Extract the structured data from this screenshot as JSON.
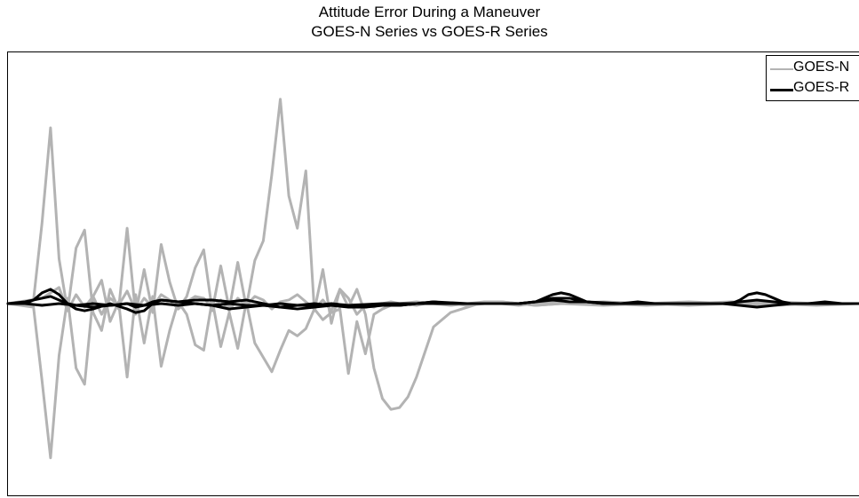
{
  "chart_data": {
    "type": "line",
    "title": "Attitude Error During a Maneuver",
    "subtitle": "GOES-N Series vs GOES-R Series",
    "xlabel": "",
    "ylabel": "",
    "xlim": [
      0,
      100
    ],
    "ylim": [
      -10,
      10
    ],
    "grid": false,
    "legend_position": "top-right",
    "series": [
      {
        "name": "GOES-N",
        "color": "#b3b3b3",
        "lines": [
          {
            "x": [
              0,
              3,
              4,
              5,
              6,
              7,
              8,
              9,
              10,
              11,
              12,
              13,
              14,
              15,
              16,
              17,
              18,
              19,
              20,
              21,
              22,
              23,
              24,
              25,
              26,
              27,
              28,
              29,
              30,
              31,
              32,
              33,
              34,
              35,
              36,
              37,
              38,
              39,
              40,
              41,
              42,
              43,
              44,
              45,
              46,
              47,
              48,
              49,
              50,
              52,
              54,
              56,
              58,
              60,
              62,
              65,
              70,
              75,
              80,
              85,
              90,
              95,
              100
            ],
            "y": [
              0,
              0.2,
              4.5,
              9.8,
              2.5,
              -0.4,
              3.1,
              4.1,
              -0.5,
              -1.5,
              0.8,
              -0.3,
              4.2,
              -0.6,
              1.9,
              -0.5,
              3.3,
              1.2,
              -0.3,
              0.4,
              2.0,
              3.0,
              -0.4,
              2.1,
              -0.3,
              2.3,
              -0.2,
              2.4,
              3.5,
              7.2,
              11.4,
              6.0,
              4.2,
              7.4,
              -0.4,
              1.9,
              -1.1,
              0.8,
              -0.2,
              0.8,
              -0.6,
              -3.6,
              -5.3,
              -5.9,
              -5.8,
              -5.2,
              -4.1,
              -2.7,
              -1.3,
              -0.5,
              -0.2,
              0.1,
              0.1,
              0,
              -0.1,
              0,
              -0.1,
              0,
              0.1,
              0,
              -0.1,
              0,
              0
            ]
          },
          {
            "x": [
              0,
              3,
              4,
              5,
              6,
              7,
              8,
              9,
              10,
              11,
              12,
              13,
              14,
              15,
              16,
              17,
              18,
              19,
              20,
              21,
              22,
              23,
              24,
              25,
              26,
              27,
              28,
              29,
              30,
              31,
              32,
              33,
              34,
              35,
              36,
              37,
              38,
              39,
              40,
              41,
              42,
              43,
              44,
              45,
              46,
              48,
              50,
              52,
              54,
              56,
              58,
              60,
              62,
              65,
              70,
              75,
              80,
              85,
              90,
              95,
              100
            ],
            "y": [
              0,
              -0.2,
              -4.3,
              -8.6,
              -2.9,
              0.3,
              -3.6,
              -4.5,
              0.4,
              1.3,
              -1.0,
              0.1,
              -4.1,
              0.5,
              -2.2,
              0.4,
              -3.5,
              -1.5,
              0.1,
              -0.6,
              -2.3,
              -2.6,
              0.2,
              -2.4,
              -0.5,
              -2.5,
              0.1,
              -2.2,
              -3.0,
              -3.8,
              -2.6,
              -1.5,
              -1.8,
              -1.4,
              -0.3,
              -0.9,
              -0.5,
              -0.3,
              -3.9,
              -1.0,
              -2.8,
              -0.6,
              -0.3,
              -0.1,
              0,
              0.1,
              0,
              -0.1,
              0,
              0.1,
              0,
              -0.1,
              0,
              0.1,
              0,
              -0.1,
              0,
              0.1,
              0,
              -0.1,
              0
            ]
          },
          {
            "x": [
              0,
              4,
              5,
              6,
              7,
              8,
              9,
              10,
              11,
              12,
              13,
              14,
              15,
              16,
              17,
              18,
              19,
              20,
              21,
              22,
              23,
              24,
              25,
              26,
              27,
              28,
              29,
              30,
              31,
              32,
              33,
              34,
              35,
              36,
              37,
              38,
              39,
              40,
              41,
              42,
              43,
              44,
              45,
              46,
              48,
              50,
              52,
              54,
              56,
              58,
              60,
              62,
              65,
              70,
              75,
              80,
              85,
              90,
              95,
              100
            ],
            "y": [
              0,
              0.3,
              0.6,
              0.9,
              -0.4,
              0.5,
              -0.2,
              0.4,
              -0.6,
              0.3,
              -0.1,
              0.7,
              -0.4,
              0.3,
              -0.2,
              0.5,
              0.2,
              -0.3,
              0.1,
              0.4,
              0.3,
              -0.2,
              0.2,
              -0.4,
              0.3,
              -0.1,
              0.4,
              0.2,
              -0.3,
              0.1,
              0.2,
              0.5,
              0.1,
              -0.3,
              0.2,
              -0.4,
              0.8,
              0.3,
              -0.6,
              -0.1,
              -0.2,
              0,
              0.1,
              0,
              -0.1,
              0.1,
              0,
              -0.1,
              0,
              0.1,
              0,
              -0.1,
              0,
              0.1,
              0,
              -0.1,
              0,
              0.1,
              0,
              0
            ]
          }
        ]
      },
      {
        "name": "GOES-R",
        "color": "#000000",
        "lines": [
          {
            "x": [
              0,
              2,
              3,
              4,
              5,
              6,
              7,
              8,
              9,
              10,
              12,
              14,
              15,
              16,
              17,
              18,
              20,
              22,
              24,
              26,
              28,
              30,
              32,
              34,
              36,
              38,
              40,
              42,
              44,
              46,
              48,
              50,
              52,
              54,
              56,
              58,
              60,
              62,
              63,
              64,
              65,
              66,
              67,
              68,
              70,
              72,
              74,
              76,
              78,
              80,
              82,
              84,
              85,
              86,
              87,
              88,
              89,
              90,
              91,
              92,
              94,
              96,
              98,
              100
            ],
            "y": [
              0,
              0,
              0.2,
              0.6,
              0.8,
              0.5,
              0,
              -0.3,
              -0.4,
              -0.3,
              0,
              -0.3,
              -0.5,
              -0.4,
              0,
              0.2,
              0.1,
              0,
              -0.1,
              -0.3,
              -0.2,
              -0.1,
              -0.2,
              -0.3,
              -0.2,
              -0.1,
              -0.2,
              -0.2,
              -0.1,
              -0.1,
              0,
              0.1,
              0,
              0,
              0,
              0,
              0,
              0.1,
              0.3,
              0.5,
              0.6,
              0.5,
              0.3,
              0.1,
              0,
              0,
              0.1,
              0,
              0,
              0,
              0,
              0,
              0,
              0.2,
              0.5,
              0.6,
              0.5,
              0.3,
              0.1,
              0,
              0,
              0.1,
              0,
              0
            ]
          },
          {
            "x": [
              0,
              2,
              4,
              5,
              6,
              7,
              8,
              10,
              12,
              14,
              15,
              16,
              17,
              18,
              20,
              22,
              24,
              26,
              28,
              30,
              32,
              34,
              36,
              38,
              40,
              42,
              44,
              46,
              48,
              50,
              54,
              58,
              60,
              62,
              64,
              66,
              68,
              70,
              75,
              80,
              84,
              86,
              88,
              90,
              92,
              95,
              100
            ],
            "y": [
              0,
              0.1,
              0.3,
              0.4,
              0.2,
              0,
              -0.1,
              -0.2,
              -0.1,
              0,
              -0.2,
              -0.1,
              0.1,
              0.2,
              0.1,
              0.2,
              0.2,
              0.1,
              0.2,
              0,
              -0.2,
              -0.1,
              0,
              -0.1,
              -0.1,
              -0.2,
              0,
              -0.1,
              0,
              0.1,
              0,
              0,
              0,
              0.1,
              0.2,
              0.1,
              0.1,
              0,
              0,
              0,
              0,
              0.1,
              0.2,
              0.1,
              0,
              0,
              0
            ]
          },
          {
            "x": [
              0,
              2,
              4,
              6,
              8,
              10,
              12,
              14,
              16,
              18,
              20,
              22,
              24,
              26,
              28,
              30,
              32,
              34,
              36,
              38,
              40,
              44,
              48,
              52,
              56,
              60,
              62,
              64,
              66,
              68,
              72,
              76,
              80,
              84,
              86,
              88,
              90,
              92,
              94,
              96,
              100
            ],
            "y": [
              0,
              0,
              -0.1,
              0,
              -0.1,
              0,
              -0.1,
              0,
              -0.1,
              0,
              -0.1,
              0,
              -0.1,
              0,
              -0.1,
              -0.1,
              0,
              -0.1,
              -0.1,
              0,
              -0.1,
              0,
              0,
              0,
              0,
              0,
              0.1,
              0.3,
              0.3,
              0.1,
              0,
              0,
              0,
              0,
              -0.1,
              -0.2,
              -0.1,
              0,
              0,
              0,
              0
            ]
          }
        ]
      }
    ]
  }
}
